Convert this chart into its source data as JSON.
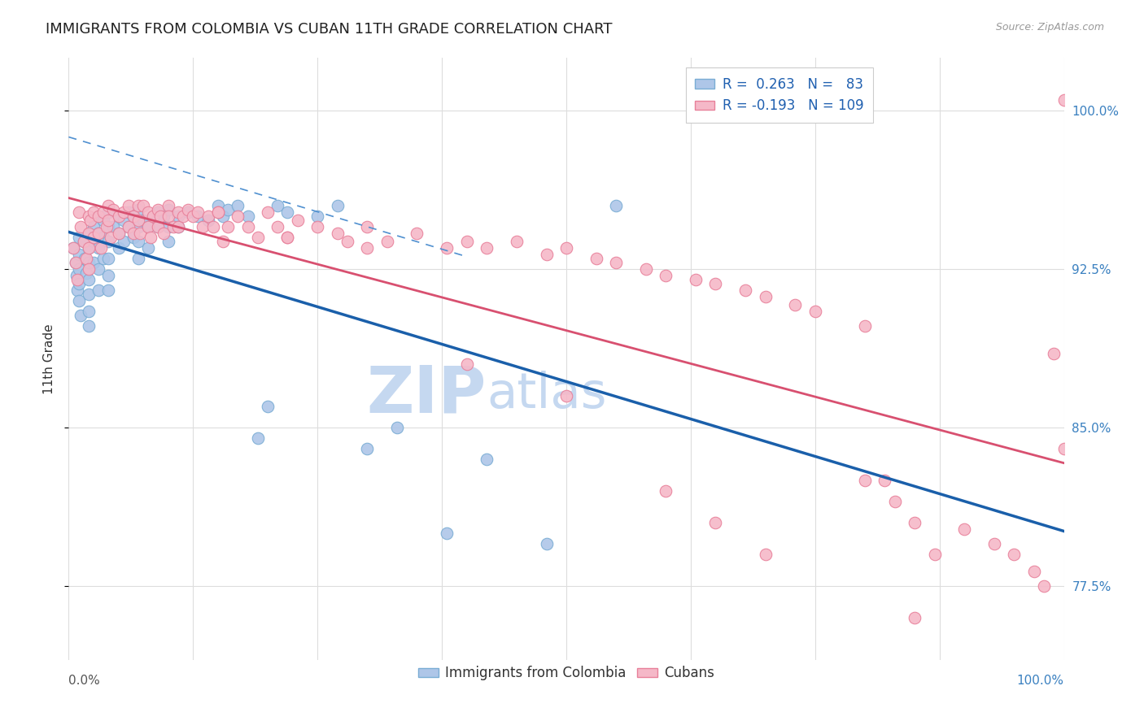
{
  "title": "IMMIGRANTS FROM COLOMBIA VS CUBAN 11TH GRADE CORRELATION CHART",
  "source": "Source: ZipAtlas.com",
  "ylabel": "11th Grade",
  "y_ticks": [
    77.5,
    85.0,
    92.5,
    100.0
  ],
  "y_tick_labels": [
    "77.5%",
    "85.0%",
    "92.5%",
    "100.0%"
  ],
  "xlim": [
    0.0,
    1.0
  ],
  "ylim": [
    74.0,
    102.5
  ],
  "colombia_color": "#aec6e8",
  "cuba_color": "#f5b8c8",
  "colombia_edge": "#7aadd4",
  "cuba_edge": "#e8809a",
  "colombia_line_color": "#1a5faa",
  "cuba_line_color": "#d85070",
  "dashed_line_color": "#5090d0",
  "watermark_zip": "ZIP",
  "watermark_atlas": "atlas",
  "watermark_color": "#c5d8f0",
  "background_color": "#ffffff",
  "grid_color": "#dddddd",
  "title_color": "#222222",
  "title_fontsize": 13,
  "axis_label_color": "#333333",
  "right_tick_color": "#3a80c0",
  "legend_text_color": "#2060b0",
  "legend_R1": "R =  0.263",
  "legend_N1": "N =   83",
  "legend_R2": "R = -0.193",
  "legend_N2": "N = 109",
  "colombia_scatter_x": [
    0.005,
    0.007,
    0.008,
    0.009,
    0.01,
    0.01,
    0.01,
    0.01,
    0.01,
    0.012,
    0.015,
    0.016,
    0.018,
    0.02,
    0.02,
    0.02,
    0.02,
    0.02,
    0.02,
    0.02,
    0.025,
    0.025,
    0.025,
    0.03,
    0.03,
    0.03,
    0.03,
    0.03,
    0.035,
    0.035,
    0.035,
    0.04,
    0.04,
    0.04,
    0.04,
    0.04,
    0.04,
    0.045,
    0.05,
    0.05,
    0.05,
    0.055,
    0.055,
    0.06,
    0.06,
    0.065,
    0.065,
    0.07,
    0.07,
    0.07,
    0.07,
    0.075,
    0.08,
    0.08,
    0.085,
    0.09,
    0.09,
    0.095,
    0.1,
    0.1,
    0.1,
    0.11,
    0.11,
    0.12,
    0.13,
    0.14,
    0.15,
    0.155,
    0.16,
    0.17,
    0.18,
    0.19,
    0.2,
    0.21,
    0.22,
    0.25,
    0.27,
    0.3,
    0.33,
    0.38,
    0.42,
    0.48,
    0.55
  ],
  "colombia_scatter_y": [
    93.5,
    92.8,
    92.2,
    91.5,
    94.0,
    93.2,
    92.5,
    91.8,
    91.0,
    90.3,
    93.8,
    93.0,
    92.3,
    94.2,
    93.5,
    92.8,
    92.0,
    91.3,
    90.5,
    89.8,
    94.5,
    93.8,
    92.8,
    95.0,
    94.2,
    93.5,
    92.5,
    91.5,
    94.8,
    94.0,
    93.0,
    95.2,
    94.5,
    93.8,
    93.0,
    92.2,
    91.5,
    94.5,
    95.0,
    94.2,
    93.5,
    94.8,
    93.8,
    95.2,
    94.5,
    95.0,
    94.0,
    95.3,
    94.5,
    93.8,
    93.0,
    94.8,
    94.5,
    93.5,
    95.0,
    95.2,
    94.5,
    95.0,
    95.3,
    94.5,
    93.8,
    95.0,
    94.5,
    95.2,
    95.0,
    94.8,
    95.5,
    95.0,
    95.3,
    95.5,
    95.0,
    84.5,
    86.0,
    95.5,
    95.2,
    95.0,
    95.5,
    84.0,
    85.0,
    80.0,
    83.5,
    79.5,
    95.5
  ],
  "cuba_scatter_x": [
    0.005,
    0.007,
    0.009,
    0.01,
    0.012,
    0.015,
    0.018,
    0.02,
    0.02,
    0.02,
    0.02,
    0.022,
    0.025,
    0.025,
    0.03,
    0.03,
    0.032,
    0.035,
    0.038,
    0.04,
    0.04,
    0.042,
    0.045,
    0.05,
    0.05,
    0.055,
    0.06,
    0.06,
    0.065,
    0.065,
    0.07,
    0.07,
    0.072,
    0.075,
    0.08,
    0.08,
    0.082,
    0.085,
    0.09,
    0.09,
    0.092,
    0.095,
    0.1,
    0.1,
    0.105,
    0.11,
    0.11,
    0.115,
    0.12,
    0.125,
    0.13,
    0.135,
    0.14,
    0.145,
    0.15,
    0.155,
    0.16,
    0.17,
    0.18,
    0.19,
    0.2,
    0.21,
    0.22,
    0.23,
    0.25,
    0.27,
    0.28,
    0.3,
    0.32,
    0.35,
    0.38,
    0.4,
    0.42,
    0.45,
    0.48,
    0.5,
    0.53,
    0.55,
    0.58,
    0.6,
    0.63,
    0.65,
    0.68,
    0.7,
    0.73,
    0.75,
    0.8,
    0.82,
    0.83,
    0.85,
    0.87,
    0.9,
    0.93,
    0.95,
    0.97,
    0.98,
    0.99,
    1.0,
    0.15,
    0.22,
    0.3,
    0.4,
    0.5,
    0.6,
    0.65,
    0.7,
    0.8,
    0.85,
    1.0
  ],
  "cuba_scatter_y": [
    93.5,
    92.8,
    92.0,
    95.2,
    94.5,
    93.8,
    93.0,
    95.0,
    94.2,
    93.5,
    92.5,
    94.8,
    95.2,
    94.0,
    95.0,
    94.2,
    93.5,
    95.2,
    94.5,
    95.5,
    94.8,
    94.0,
    95.3,
    95.0,
    94.2,
    95.2,
    95.5,
    94.5,
    95.0,
    94.2,
    95.5,
    94.8,
    94.2,
    95.5,
    95.2,
    94.5,
    94.0,
    95.0,
    95.3,
    94.5,
    95.0,
    94.2,
    95.5,
    95.0,
    94.5,
    95.2,
    94.5,
    95.0,
    95.3,
    95.0,
    95.2,
    94.5,
    95.0,
    94.5,
    95.2,
    93.8,
    94.5,
    95.0,
    94.5,
    94.0,
    95.2,
    94.5,
    94.0,
    94.8,
    94.5,
    94.2,
    93.8,
    94.5,
    93.8,
    94.2,
    93.5,
    93.8,
    93.5,
    93.8,
    93.2,
    93.5,
    93.0,
    92.8,
    92.5,
    92.2,
    92.0,
    91.8,
    91.5,
    91.2,
    90.8,
    90.5,
    89.8,
    82.5,
    81.5,
    80.5,
    79.0,
    80.2,
    79.5,
    79.0,
    78.2,
    77.5,
    88.5,
    84.0,
    95.2,
    94.0,
    93.5,
    88.0,
    86.5,
    82.0,
    80.5,
    79.0,
    82.5,
    76.0,
    100.5
  ]
}
